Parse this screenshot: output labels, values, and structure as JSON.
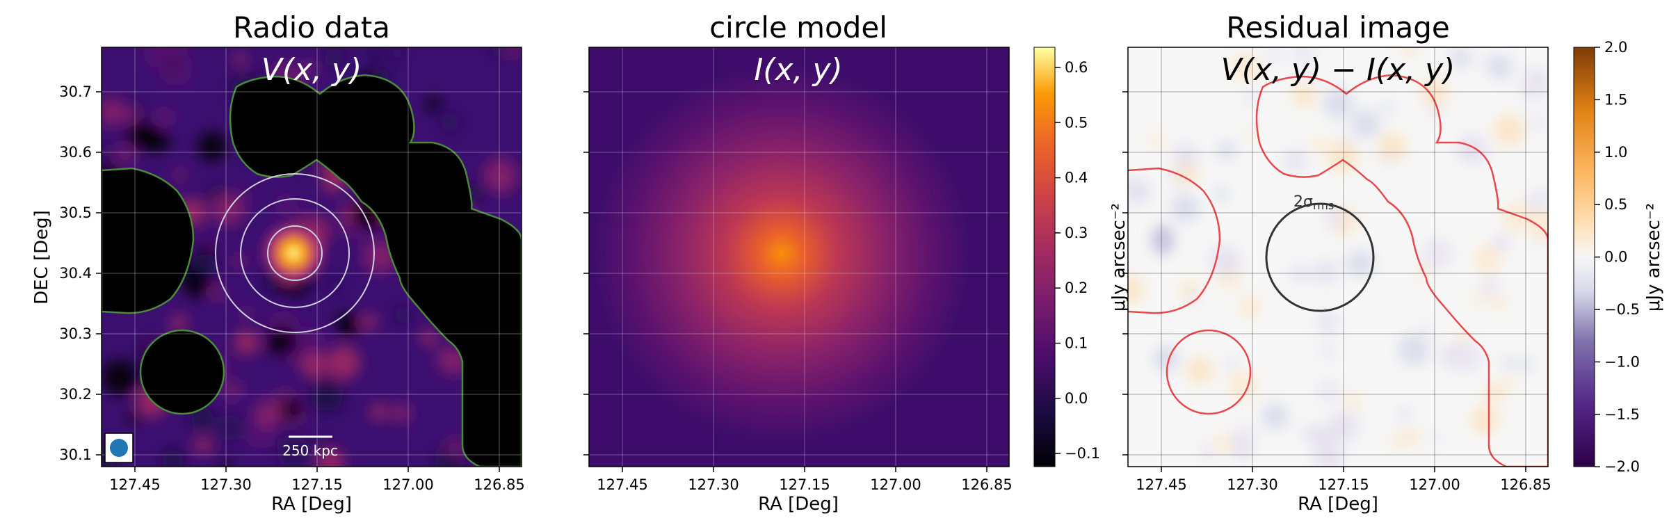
{
  "panels": [
    {
      "title": "Radio data",
      "annotation": "V(x, y)",
      "xlabel": "RA [Deg]",
      "ylabel": "DEC [Deg]",
      "x_ticks": [
        "127.45",
        "127.30",
        "127.15",
        "127.00",
        "126.85"
      ],
      "y_ticks": [
        "30.7",
        "30.6",
        "30.5",
        "30.4",
        "30.3",
        "30.2",
        "30.1"
      ],
      "scalebar_label": "250 kpc",
      "beam_color": "#1f77b4",
      "mask_edge_color": "#4a8a3a",
      "contour_color": "#cfcfe0"
    },
    {
      "title": "circle model",
      "annotation": "I(x, y)",
      "xlabel": "RA [Deg]",
      "x_ticks": [
        "127.45",
        "127.30",
        "127.15",
        "127.00",
        "126.85"
      ],
      "colorbar": {
        "ticks": [
          "0.6",
          "0.5",
          "0.4",
          "0.3",
          "0.2",
          "0.1",
          "0.0",
          "−0.1"
        ],
        "label": "μJy arcsec⁻²",
        "colormap": "inferno",
        "range": [
          -0.13,
          0.64
        ]
      }
    },
    {
      "title": "Residual image",
      "annotation": "V(x, y) − I(x, y)",
      "xlabel": "RA [Deg]",
      "x_ticks": [
        "127.45",
        "127.30",
        "127.15",
        "127.00",
        "126.85"
      ],
      "circle_label": "2σ",
      "circle_label_sub": "rms",
      "mask_edge_color": "#e8474b",
      "colorbar": {
        "ticks": [
          "2.0",
          "1.5",
          "1.0",
          "0.5",
          "0.0",
          "−0.5",
          "−1.0",
          "−1.5",
          "−2.0"
        ],
        "label": "μJy arcsec⁻²",
        "colormap": "PuOr_r",
        "range": [
          -2.0,
          2.0
        ]
      }
    }
  ],
  "chart_data": [
    {
      "type": "heatmap",
      "title": "Radio data",
      "xlabel": "RA [Deg]",
      "ylabel": "DEC [Deg]",
      "xlim": [
        127.53,
        126.82
      ],
      "ylim": [
        30.09,
        30.77
      ],
      "peak": {
        "ra": 127.19,
        "dec": 30.44
      },
      "contour_circles_radius_deg": [
        0.05,
        0.1,
        0.145
      ],
      "grid": true
    },
    {
      "type": "heatmap",
      "title": "circle model",
      "xlabel": "RA [Deg]",
      "xlim": [
        127.53,
        126.82
      ],
      "ylim": [
        30.09,
        30.77
      ],
      "center": {
        "ra": 127.19,
        "dec": 30.44
      },
      "peak_value": 0.6,
      "colorbar_range": [
        -0.13,
        0.64
      ],
      "grid": true
    },
    {
      "type": "heatmap",
      "title": "Residual image",
      "xlabel": "RA [Deg]",
      "xlim": [
        127.53,
        126.82
      ],
      "ylim": [
        30.09,
        30.77
      ],
      "colorbar_range": [
        -2.0,
        2.0
      ],
      "grid": true
    }
  ]
}
